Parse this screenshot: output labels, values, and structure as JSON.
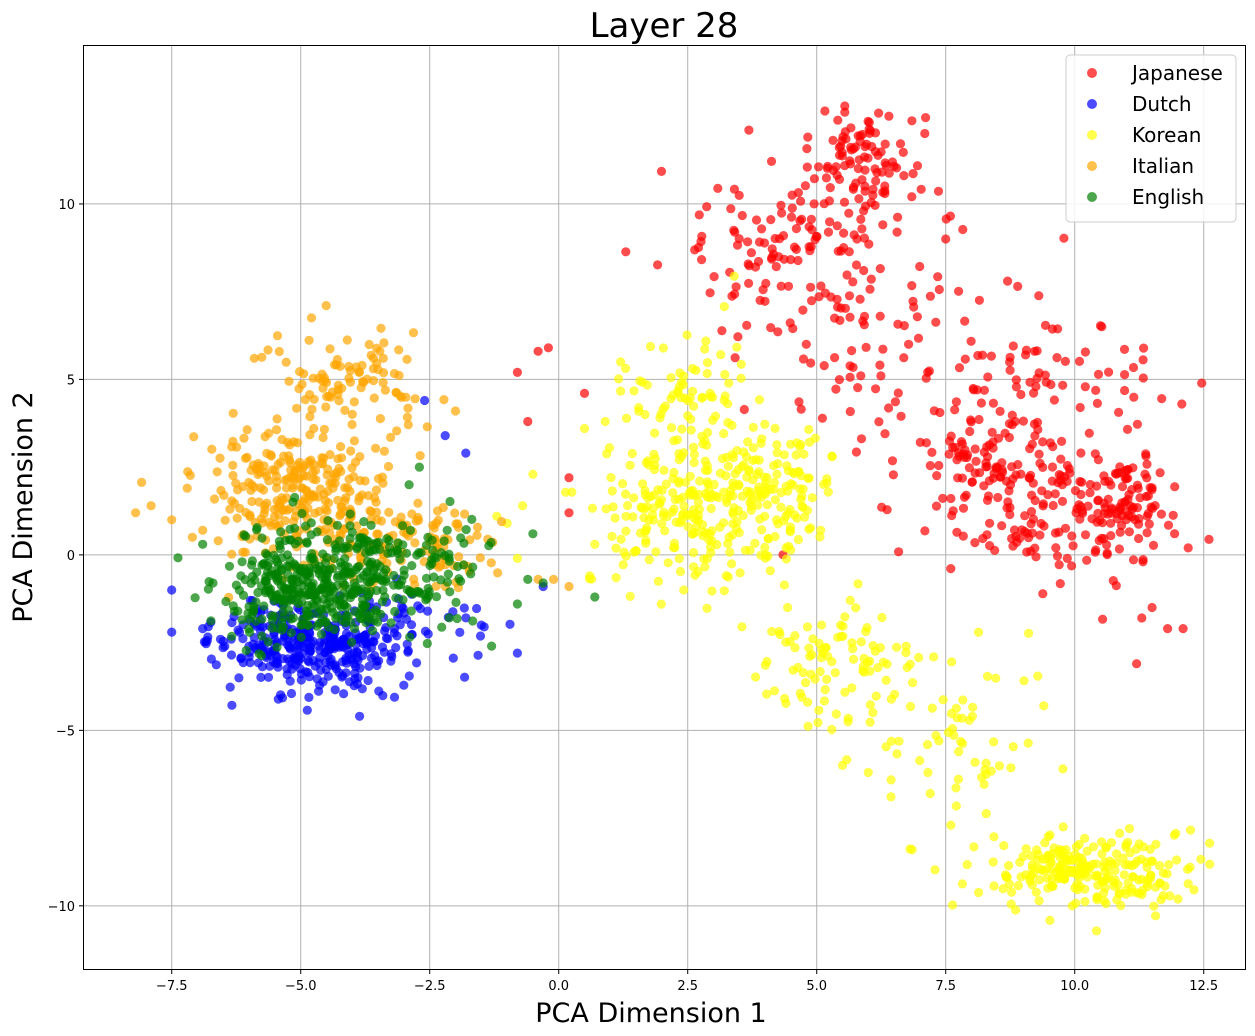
{
  "chart_data": {
    "type": "scatter",
    "title": "Layer 28",
    "xlabel": "PCA Dimension 1",
    "ylabel": "PCA Dimension 2",
    "xlim": [
      -9.2,
      13.3
    ],
    "ylim": [
      -11.8,
      14.5
    ],
    "xticks": [
      -7.5,
      -5.0,
      -2.5,
      0.0,
      2.5,
      5.0,
      7.5,
      10.0,
      12.5
    ],
    "xtick_labels": [
      "−7.5",
      "−5.0",
      "−2.5",
      "0.0",
      "2.5",
      "5.0",
      "7.5",
      "10.0",
      "12.5"
    ],
    "yticks": [
      -10,
      -5,
      0,
      5,
      10
    ],
    "ytick_labels": [
      "−10",
      "−5",
      "0",
      "5",
      "10"
    ],
    "grid": true,
    "legend_position": "top-right",
    "series": [
      {
        "name": "Japanese",
        "color": "#ff0000",
        "clusters": [
          {
            "cx": 5.9,
            "cy": 11.3,
            "sx": 0.6,
            "sy": 0.7,
            "n": 90
          },
          {
            "cx": 4.6,
            "cy": 8.9,
            "sx": 1.2,
            "sy": 1.2,
            "n": 120
          },
          {
            "cx": 6.5,
            "cy": 5.8,
            "sx": 1.8,
            "sy": 1.8,
            "n": 110
          },
          {
            "cx": 8.4,
            "cy": 2.6,
            "sx": 0.8,
            "sy": 0.7,
            "n": 90
          },
          {
            "cx": 10.9,
            "cy": 1.5,
            "sx": 0.5,
            "sy": 0.6,
            "n": 80
          },
          {
            "cx": 9.6,
            "cy": 1.0,
            "sx": 1.1,
            "sy": 0.9,
            "n": 110
          },
          {
            "cx": 9.8,
            "cy": 4.6,
            "sx": 1.0,
            "sy": 1.0,
            "n": 60
          }
        ],
        "points": [
          [
            -0.8,
            5.2
          ],
          [
            -0.2,
            5.9
          ],
          [
            -0.4,
            5.8
          ],
          [
            0.5,
            4.6
          ],
          [
            -0.6,
            3.8
          ],
          [
            0.2,
            2.2
          ],
          [
            0.2,
            1.2
          ],
          [
            11.5,
            -1.5
          ],
          [
            11.2,
            -3.1
          ],
          [
            11.8,
            -2.1
          ],
          [
            12.1,
            -2.1
          ],
          [
            11.3,
            -1.8
          ],
          [
            12.2,
            0.2
          ],
          [
            7.5,
            9.0
          ],
          [
            8.7,
            7.8
          ]
        ]
      },
      {
        "name": "Dutch",
        "color": "#0000ff",
        "clusters": [
          {
            "cx": -4.9,
            "cy": -2.6,
            "sx": 0.9,
            "sy": 0.6,
            "n": 260
          },
          {
            "cx": -3.8,
            "cy": -2.3,
            "sx": 1.0,
            "sy": 0.7,
            "n": 120
          }
        ],
        "points": [
          [
            -7.5,
            -1.0
          ],
          [
            -7.5,
            -2.2
          ],
          [
            -6.9,
            -2.1
          ],
          [
            -2.6,
            4.4
          ],
          [
            -2.2,
            3.4
          ],
          [
            -1.8,
            2.9
          ],
          [
            -0.8,
            -2.8
          ],
          [
            -0.3,
            -0.9
          ],
          [
            -1.5,
            -2.0
          ]
        ]
      },
      {
        "name": "Korean",
        "color": "#ffff00",
        "clusters": [
          {
            "cx": 2.3,
            "cy": 4.6,
            "sx": 0.6,
            "sy": 0.9,
            "n": 70
          },
          {
            "cx": 2.8,
            "cy": 1.2,
            "sx": 1.1,
            "sy": 1.1,
            "n": 260
          },
          {
            "cx": 4.1,
            "cy": 2.2,
            "sx": 0.6,
            "sy": 0.8,
            "n": 80
          },
          {
            "cx": 5.4,
            "cy": -3.0,
            "sx": 0.8,
            "sy": 0.9,
            "n": 90
          },
          {
            "cx": 7.6,
            "cy": -5.0,
            "sx": 0.9,
            "sy": 1.1,
            "n": 60
          },
          {
            "cx": 10.2,
            "cy": -9.0,
            "sx": 1.0,
            "sy": 0.5,
            "n": 240
          }
        ],
        "points": [
          [
            -1.0,
            0.9
          ],
          [
            -1.2,
            1.1
          ],
          [
            -0.7,
            1.4
          ],
          [
            -0.5,
            2.3
          ],
          [
            -0.8,
            -0.1
          ],
          [
            0.5,
            3.6
          ],
          [
            0.9,
            3.8
          ],
          [
            1.2,
            5.5
          ],
          [
            0.6,
            -0.6
          ],
          [
            0.7,
            0.3
          ],
          [
            5.5,
            -6.0
          ],
          [
            6.0,
            -6.2
          ],
          [
            7.2,
            -6.8
          ],
          [
            7.6,
            -7.7
          ],
          [
            9.4,
            -4.3
          ]
        ]
      },
      {
        "name": "Italian",
        "color": "#ffa500",
        "clusters": [
          {
            "cx": -4.0,
            "cy": 5.0,
            "sx": 0.7,
            "sy": 0.7,
            "n": 90
          },
          {
            "cx": -4.9,
            "cy": 1.5,
            "sx": 1.1,
            "sy": 1.0,
            "n": 300
          },
          {
            "cx": -2.5,
            "cy": 0.3,
            "sx": 0.8,
            "sy": 0.6,
            "n": 80
          }
        ],
        "points": [
          [
            -8.2,
            1.2
          ],
          [
            -7.9,
            1.4
          ],
          [
            -7.5,
            1.0
          ],
          [
            -7.2,
            1.9
          ],
          [
            -7.1,
            0.5
          ],
          [
            -6.9,
            0.7
          ],
          [
            -6.6,
            0.4
          ],
          [
            -5.9,
            5.6
          ],
          [
            -3.4,
            5.6
          ],
          [
            -2.0,
            4.1
          ],
          [
            -0.4,
            -0.7
          ],
          [
            0.2,
            -0.9
          ],
          [
            -0.1,
            -0.7
          ]
        ]
      },
      {
        "name": "English",
        "color": "#008000",
        "clusters": [
          {
            "cx": -4.7,
            "cy": -0.9,
            "sx": 0.9,
            "sy": 0.8,
            "n": 380
          },
          {
            "cx": -3.0,
            "cy": -0.5,
            "sx": 1.0,
            "sy": 0.7,
            "n": 110
          }
        ],
        "points": [
          [
            -6.9,
            0.3
          ],
          [
            -6.7,
            -0.8
          ],
          [
            -2.7,
            2.5
          ],
          [
            -2.9,
            2.0
          ],
          [
            -1.3,
            -2.6
          ],
          [
            -0.5,
            0.6
          ],
          [
            -0.6,
            -0.7
          ],
          [
            0.7,
            -1.2
          ],
          [
            -0.3,
            -0.8
          ],
          [
            -0.8,
            -1.4
          ]
        ]
      }
    ]
  }
}
